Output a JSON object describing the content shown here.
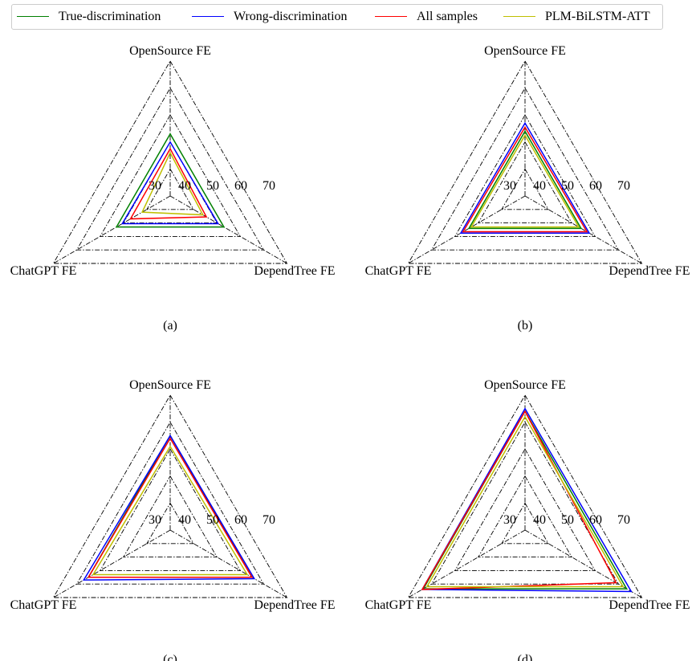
{
  "legend": {
    "items": [
      {
        "label": "True-discrimination",
        "color": "#008000"
      },
      {
        "label": "Wrong-discrimination",
        "color": "#0000ff"
      },
      {
        "label": "All samples",
        "color": "#ff0000"
      },
      {
        "label": "PLM-BiLSTM-ATT",
        "color": "#bfbf00"
      }
    ]
  },
  "chart_data": [
    {
      "type": "radar",
      "panel_label": "(a)",
      "axes": [
        "OpenSource FE",
        "DependTree FE",
        "ChatGPT FE"
      ],
      "tick_labels": [
        "30",
        "40",
        "50",
        "60",
        "70"
      ],
      "series": [
        {
          "name": "True-discrimination",
          "values": [
            43,
            43,
            43
          ]
        },
        {
          "name": "Wrong-discrimination",
          "values": [
            40,
            40.5,
            40.5
          ]
        },
        {
          "name": "All samples",
          "values": [
            37.5,
            35.5,
            37
          ]
        },
        {
          "name": "PLM-BiLSTM-ATT",
          "values": [
            36,
            34,
            32
          ]
        }
      ]
    },
    {
      "type": "radar",
      "panel_label": "(b)",
      "axes": [
        "OpenSource FE",
        "DependTree FE",
        "ChatGPT FE"
      ],
      "tick_labels": [
        "30",
        "40",
        "50",
        "60",
        "70"
      ],
      "series": [
        {
          "name": "True-discrimination",
          "values": [
            44,
            44,
            44
          ]
        },
        {
          "name": "Wrong-discrimination",
          "values": [
            47,
            47.5,
            47.5
          ]
        },
        {
          "name": "All samples",
          "values": [
            45.5,
            46.5,
            46.5
          ]
        },
        {
          "name": "PLM-BiLSTM-ATT",
          "values": [
            42.5,
            43,
            43
          ]
        }
      ]
    },
    {
      "type": "radar",
      "panel_label": "(c)",
      "axes": [
        "OpenSource FE",
        "DependTree FE",
        "ChatGPT FE"
      ],
      "tick_labels": [
        "30",
        "40",
        "50",
        "60",
        "70"
      ],
      "series": [
        {
          "name": "True-discrimination",
          "values": [
            55,
            55,
            55
          ]
        },
        {
          "name": "Wrong-discrimination",
          "values": [
            55,
            56,
            57
          ]
        },
        {
          "name": "All samples",
          "values": [
            54,
            55,
            55
          ]
        },
        {
          "name": "PLM-BiLSTM-ATT",
          "values": [
            51,
            53,
            53
          ]
        }
      ]
    },
    {
      "type": "radar",
      "panel_label": "(d)",
      "axes": [
        "OpenSource FE",
        "DependTree FE",
        "ChatGPT FE"
      ],
      "tick_labels": [
        "30",
        "40",
        "50",
        "60",
        "70"
      ],
      "series": [
        {
          "name": "True-discrimination",
          "values": [
            64,
            63.5,
            63.5
          ]
        },
        {
          "name": "Wrong-discrimination",
          "values": [
            65,
            65.5,
            64
          ]
        },
        {
          "name": "All samples",
          "values": [
            64,
            59,
            64
          ]
        },
        {
          "name": "PLM-BiLSTM-ATT",
          "values": [
            62,
            62,
            62
          ]
        }
      ]
    }
  ]
}
